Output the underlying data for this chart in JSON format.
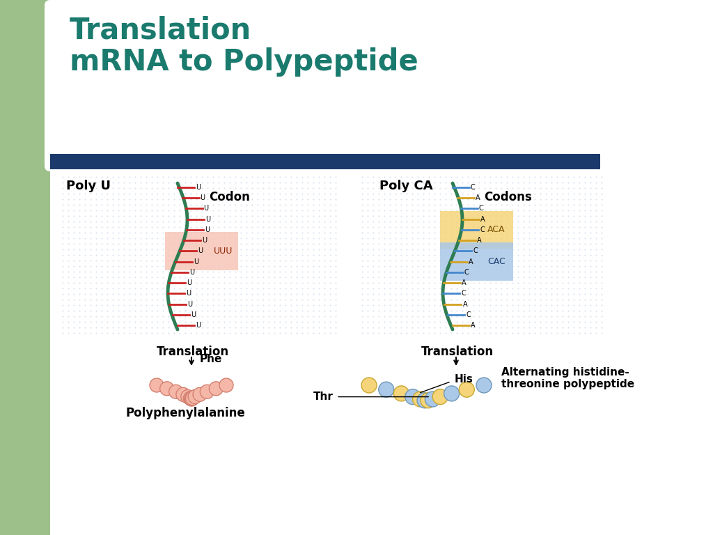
{
  "title_line1": "Translation",
  "title_line2": "mRNA to Polypeptide",
  "title_color": "#1a7a6e",
  "title_fontsize": 30,
  "bg_color": "#ffffff",
  "green_sidebar_color": "#9dc08b",
  "blue_bar_color": "#1b3a6b",
  "left_panel": {
    "label": "Poly U",
    "strand_color": "#2e7d52",
    "tick_color": "#cc2222",
    "nucleotide": "U",
    "codon_box_color": "#f7c5b8",
    "codon_text": "UUU",
    "codon_label": "Codon",
    "translation_label": "Translation",
    "aa_label": "Phe",
    "product_label": "Polyphenylalanine",
    "bead_color": "#f5b8a8",
    "bead_edge_color": "#d48070"
  },
  "right_panel": {
    "label": "Poly CA",
    "strand_color": "#2e7d52",
    "tick_color_A": "#d4a020",
    "tick_color_C": "#4488cc",
    "codon_box1_color": "#f5d47a",
    "codon_box2_color": "#aac8e8",
    "codon1_text": "ACA",
    "codon2_text": "CAC",
    "codon_label": "Codons",
    "translation_label": "Translation",
    "aa1_label": "His",
    "aa2_label": "Thr",
    "product_label": "Alternating histidine-\nthreonine polypeptide",
    "bead1_color": "#f5d47a",
    "bead1_edge": "#c8a830",
    "bead2_color": "#aac8e8",
    "bead2_edge": "#7098b8"
  }
}
